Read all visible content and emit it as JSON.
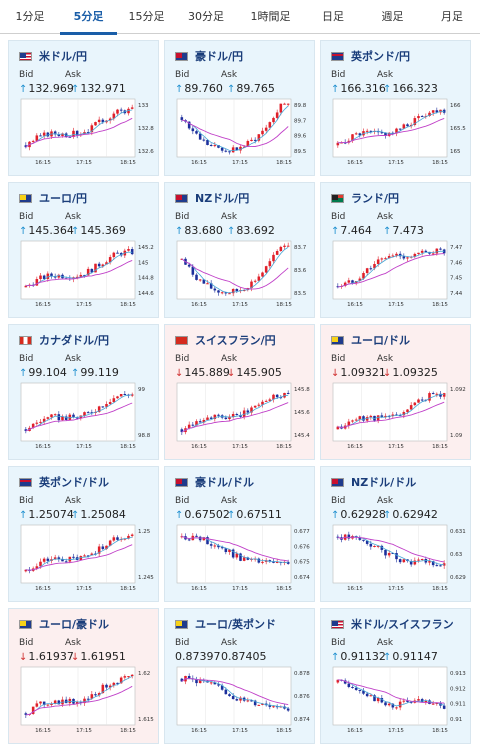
{
  "tabs": [
    {
      "label": "1分足",
      "active": false
    },
    {
      "label": "5分足",
      "active": true
    },
    {
      "label": "15分足",
      "active": false
    },
    {
      "label": "30分足",
      "active": false
    },
    {
      "label": "1時間足",
      "active": false
    },
    {
      "label": "日足",
      "active": false
    },
    {
      "label": "週足",
      "active": false
    },
    {
      "label": "月足",
      "active": false
    }
  ],
  "labels": {
    "bid": "Bid",
    "ask": "Ask"
  },
  "colors": {
    "up": "#1e8fcf",
    "down": "#d03030",
    "candle_up": "#e0202a",
    "candle_down": "#1c2f9c",
    "ma_short": "#47a7d6",
    "ma_long": "#c040c8",
    "tab_active": "#1a5ea8"
  },
  "pairs": [
    {
      "name": "米ドル/円",
      "flag": "us",
      "dir": "up",
      "bid": "132.969",
      "ask": "132.971",
      "chart_data": {
        "type": "candlestick",
        "x_ticks": [
          "16:15",
          "17:15",
          "18:15"
        ],
        "y_ticks": [
          "133",
          "132.8",
          "132.6"
        ],
        "trend": "up"
      }
    },
    {
      "name": "豪ドル/円",
      "flag": "au",
      "dir": "up",
      "bid": "89.760",
      "ask": "89.765",
      "chart_data": {
        "type": "candlestick",
        "x_ticks": [
          "16:15",
          "17:15",
          "18:15"
        ],
        "y_ticks": [
          "89.8",
          "89.7",
          "89.6",
          "89.5"
        ],
        "trend": "vdip"
      }
    },
    {
      "name": "英ポンド/円",
      "flag": "gb",
      "dir": "up",
      "bid": "166.316",
      "ask": "166.323",
      "chart_data": {
        "type": "candlestick",
        "x_ticks": [
          "16:15",
          "17:15",
          "18:15"
        ],
        "y_ticks": [
          "166",
          "165.5",
          "165"
        ],
        "trend": "up"
      }
    },
    {
      "name": "ユーロ/円",
      "flag": "eu",
      "dir": "up",
      "bid": "145.364",
      "ask": "145.369",
      "chart_data": {
        "type": "candlestick",
        "x_ticks": [
          "16:15",
          "17:15",
          "18:15"
        ],
        "y_ticks": [
          "145.2",
          "145",
          "144.8",
          "144.6"
        ],
        "trend": "up"
      }
    },
    {
      "name": "NZドル/円",
      "flag": "nz",
      "dir": "up",
      "bid": "83.680",
      "ask": "83.692",
      "chart_data": {
        "type": "candlestick",
        "x_ticks": [
          "16:15",
          "17:15",
          "18:15"
        ],
        "y_ticks": [
          "83.7",
          "83.6",
          "83.5"
        ],
        "trend": "vdip"
      }
    },
    {
      "name": "ランド/円",
      "flag": "za",
      "dir": "up",
      "bid": "7.464",
      "ask": "7.473",
      "chart_data": {
        "type": "candlestick",
        "x_ticks": [
          "16:15",
          "17:15",
          "18:15"
        ],
        "y_ticks": [
          "7.47",
          "7.46",
          "7.45",
          "7.44"
        ],
        "trend": "upflat"
      }
    },
    {
      "name": "カナダドル/円",
      "flag": "ca",
      "dir": "up",
      "bid": "99.104",
      "ask": "99.119",
      "chart_data": {
        "type": "candlestick",
        "x_ticks": [
          "16:15",
          "17:15",
          "18:15"
        ],
        "y_ticks": [
          "99",
          "98.8"
        ],
        "trend": "up"
      }
    },
    {
      "name": "スイスフラン/円",
      "flag": "ch",
      "dir": "down",
      "bid": "145.889",
      "ask": "145.905",
      "chart_data": {
        "type": "candlestick",
        "x_ticks": [
          "16:15",
          "17:15",
          "18:15"
        ],
        "y_ticks": [
          "145.8",
          "145.6",
          "145.4"
        ],
        "trend": "up"
      }
    },
    {
      "name": "ユーロ/ドル",
      "flag": "eu",
      "dir": "down",
      "bid": "1.09321",
      "ask": "1.09325",
      "chart_data": {
        "type": "candlestick",
        "x_ticks": [
          "16:15",
          "17:15",
          "18:15"
        ],
        "y_ticks": [
          "1.092",
          "1.09"
        ],
        "trend": "up"
      }
    },
    {
      "name": "英ポンド/ドル",
      "flag": "gb",
      "dir": "up",
      "bid": "1.25074",
      "ask": "1.25084",
      "chart_data": {
        "type": "candlestick",
        "x_ticks": [
          "16:15",
          "17:15",
          "18:15"
        ],
        "y_ticks": [
          "1.25",
          "1.245"
        ],
        "trend": "up"
      }
    },
    {
      "name": "豪ドル/ドル",
      "flag": "au",
      "dir": "up",
      "bid": "0.67502",
      "ask": "0.67511",
      "chart_data": {
        "type": "candlestick",
        "x_ticks": [
          "16:15",
          "17:15",
          "18:15"
        ],
        "y_ticks": [
          "0.677",
          "0.676",
          "0.675",
          "0.674"
        ],
        "trend": "down"
      }
    },
    {
      "name": "NZドル/ドル",
      "flag": "nz",
      "dir": "up",
      "bid": "0.62928",
      "ask": "0.62942",
      "chart_data": {
        "type": "candlestick",
        "x_ticks": [
          "16:15",
          "17:15",
          "18:15"
        ],
        "y_ticks": [
          "0.631",
          "0.63",
          "0.629"
        ],
        "trend": "down"
      }
    },
    {
      "name": "ユーロ/豪ドル",
      "flag": "eu",
      "dir": "down",
      "bid": "1.61937",
      "ask": "1.61951",
      "chart_data": {
        "type": "candlestick",
        "x_ticks": [
          "16:15",
          "17:15",
          "18:15"
        ],
        "y_ticks": [
          "1.62",
          "1.615"
        ],
        "trend": "up"
      }
    },
    {
      "name": "ユーロ/英ポンド",
      "flag": "eu",
      "dir": "none",
      "bid": "0.87397",
      "ask": "0.87405",
      "chart_data": {
        "type": "candlestick",
        "x_ticks": [
          "16:15",
          "17:15",
          "18:15"
        ],
        "y_ticks": [
          "0.878",
          "0.876",
          "0.874"
        ],
        "trend": "down"
      }
    },
    {
      "name": "米ドル/スイスフラン",
      "flag": "us",
      "dir": "up",
      "bid": "0.91132",
      "ask": "0.91147",
      "chart_data": {
        "type": "candlestick",
        "x_ticks": [
          "16:15",
          "17:15",
          "18:15"
        ],
        "y_ticks": [
          "0.913",
          "0.912",
          "0.911",
          "0.91"
        ],
        "trend": "downflat"
      }
    }
  ]
}
